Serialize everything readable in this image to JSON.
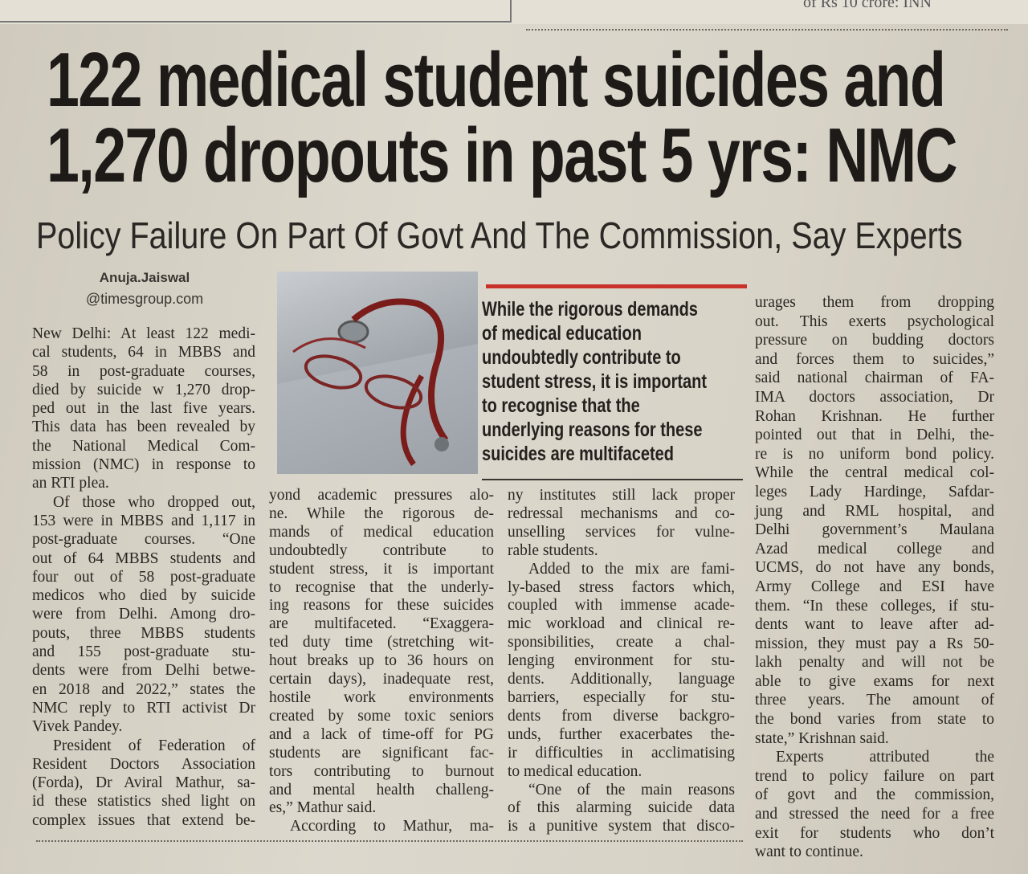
{
  "top_strip": {
    "text": "of Rs 10 crore: INN"
  },
  "headline": {
    "line1": "122 medical student suicides and",
    "line2": "1,270 dropouts in past 5 yrs: NMC"
  },
  "subheadline": "Policy Failure On Part Of Govt And The Commission, Say Experts",
  "byline": {
    "author": "Anuja.Jaiswal",
    "email": "@timesgroup.com"
  },
  "pull_quote": [
    "While the rigorous demands",
    "of medical education",
    "undoubtedly contribute to",
    "student stress, it is important",
    "to recognise that the",
    "underlying reasons for these",
    "suicides are multifaceted"
  ],
  "accent_color": "#c8322a",
  "photo": {
    "subject": "stethoscope-and-glasses"
  },
  "columns": [
    [
      "New Delhi: At least 122 medi-",
      "cal students, 64 in MBBS and",
      "58 in post-graduate courses,",
      "died by suicide w 1,270 drop-",
      "ped out in the last five years.",
      "This data has been revealed by",
      "the National Medical Com-",
      "mission (NMC) in response to",
      "an RTI plea.",
      "Of those who dropped out,",
      "153 were in MBBS and 1,117 in",
      "post-graduate courses. “One",
      "out of 64 MBBS students and",
      "four out of 58 post-graduate",
      "medicos who died by suicide",
      "were from Delhi. Among dro-",
      "pouts, three MBBS students",
      "and 155 post-graduate stu-",
      "dents were from Delhi betwe-",
      "en 2018 and 2022,” states the",
      "NMC reply to RTI activist Dr",
      "Vivek Pandey.",
      "President of Federation of",
      "Resident Doctors Association",
      "(Forda), Dr Aviral Mathur, sa-",
      "id these statistics shed light on",
      "complex issues that extend be-"
    ],
    [
      "yond academic pressures alo-",
      "ne. While the rigorous de-",
      "mands of medical education",
      "undoubtedly contribute to",
      "student stress, it is important",
      "to recognise that the underly-",
      "ing reasons for these suicides",
      "are multifaceted. “Exaggera-",
      "ted duty time (stretching wit-",
      "hout breaks up to 36 hours on",
      "certain days), inadequate rest,",
      "hostile work environments",
      "created by some toxic seniors",
      "and a lack of time-off for PG",
      "students are significant fac-",
      "tors contributing to burnout",
      "and mental health challeng-",
      "es,” Mathur said.",
      "According to Mathur, ma-"
    ],
    [
      "ny institutes still lack proper",
      "redressal mechanisms and co-",
      "unselling services for vulne-",
      "rable students.",
      "Added to the mix are fami-",
      "ly-based stress factors which,",
      "coupled with immense acade-",
      "mic workload and clinical re-",
      "sponsibilities, create a chal-",
      "lenging environment for stu-",
      "dents. Additionally, language",
      "barriers, especially for stu-",
      "dents from diverse backgro-",
      "unds, further exacerbates the-",
      "ir difficulties in acclimatising",
      "to medical education.",
      "“One of the main reasons",
      "of this alarming suicide data",
      "is a punitive system that disco-"
    ],
    [
      "urages them from dropping",
      "out. This exerts psychological",
      "pressure on budding doctors",
      "and forces them to suicides,”",
      "said national chairman of FA-",
      "IMA doctors association, Dr",
      "Rohan Krishnan. He further",
      "pointed out that in Delhi, the-",
      "re is no uniform bond policy.",
      "While the central medical col-",
      "leges Lady Hardinge, Safdar-",
      "jung and RML hospital, and",
      "Delhi government’s Maulana",
      "Azad medical college and",
      "UCMS, do not have any bonds,",
      "Army College and ESI have",
      "them. “In these colleges, if stu-",
      "dents want to leave after ad-",
      "mission, they must pay a Rs 50-",
      "lakh penalty and will not be",
      "able to give exams for next",
      "three years. The amount of",
      "the bond varies from state to",
      "state,” Krishnan said.",
      "Experts attributed the",
      "trend to policy failure on part",
      "of govt and the commission,",
      "and stressed the need for a free",
      "exit for students who don’t",
      "want to continue."
    ]
  ]
}
